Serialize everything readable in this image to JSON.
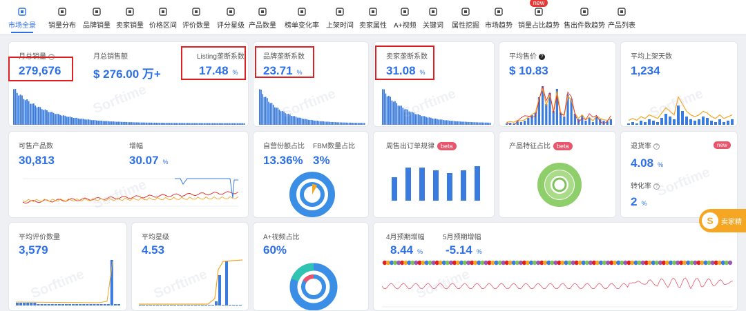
{
  "tabs": [
    {
      "label": "市场全景",
      "icon": "market-icon",
      "active": true
    },
    {
      "label": "销量分布",
      "icon": "bar-chart-icon"
    },
    {
      "label": "品牌销量",
      "icon": "brand-shield-icon"
    },
    {
      "label": "卖家销量",
      "icon": "seller-icon"
    },
    {
      "label": "价格区间",
      "icon": "price-icon"
    },
    {
      "label": "评价数量",
      "icon": "review-icon"
    },
    {
      "label": "评分星级",
      "icon": "star-icon"
    },
    {
      "label": "产品数量",
      "icon": "line-chart-icon"
    },
    {
      "label": "榜单变化率",
      "icon": "gauge-icon"
    },
    {
      "label": "上架时间",
      "icon": "calendar-icon"
    },
    {
      "label": "卖家属性",
      "icon": "store-icon"
    },
    {
      "label": "A+视频",
      "icon": "pie-icon"
    },
    {
      "label": "关键词",
      "icon": "keyword-icon"
    },
    {
      "label": "属性挖掘",
      "icon": "puzzle-icon"
    },
    {
      "label": "市场趋势",
      "icon": "trend-icon"
    },
    {
      "label": "销量占比趋势",
      "icon": "folder-icon",
      "badge": "new"
    },
    {
      "label": "售出件数趋势",
      "icon": "basket-icon"
    },
    {
      "label": "产品列表",
      "icon": "list-icon"
    }
  ],
  "cards": {
    "monthly_sales": {
      "label": "月总销量",
      "value": "279,676"
    },
    "monthly_revenue": {
      "label": "月总销售额",
      "value": "$ 276.00 万+"
    },
    "listing_monopoly": {
      "label": "Listing垄断系数",
      "value": "17.48",
      "unit": "%"
    },
    "brand_monopoly": {
      "label": "品牌垄断系数",
      "value": "23.71",
      "unit": "%"
    },
    "seller_monopoly": {
      "label": "卖家垄断系数",
      "value": "31.08",
      "unit": "%"
    },
    "avg_price": {
      "label": "平均售价",
      "value": "$ 10.83"
    },
    "avg_days_listed": {
      "label": "平均上架天数",
      "value": "1,234"
    },
    "products_for_sale": {
      "label": "可售产品数",
      "value": "30,813"
    },
    "growth": {
      "label": "增幅",
      "value": "30.07",
      "unit": "%"
    },
    "self_ship": {
      "label": "自营份额占比",
      "value": "13.36%"
    },
    "fbm": {
      "label": "FBM数量占比",
      "value": "3%"
    },
    "weekly_orders": {
      "label": "周售出订单规律",
      "badge": "beta"
    },
    "feature_share": {
      "label": "产品特征占比",
      "badge": "beta"
    },
    "return_rate": {
      "label": "退货率",
      "value": "4.08",
      "unit": "%",
      "badge": "new"
    },
    "conversion": {
      "label": "转化率",
      "value": "2",
      "unit": "%"
    },
    "avg_reviews": {
      "label": "平均评价数量",
      "value": "3,579"
    },
    "avg_rating": {
      "label": "平均星级",
      "value": "4.53"
    },
    "aplus_video": {
      "label": "A+视频占比",
      "value": "60%"
    },
    "april_forecast": {
      "label": "4月预期增幅",
      "value": "8.44",
      "unit": "%"
    },
    "may_forecast": {
      "label": "5月预期增幅",
      "value": "-5.14",
      "unit": "%"
    }
  },
  "watermark": "Sorftime",
  "float_button": {
    "icon": "S",
    "label": "卖家精"
  },
  "colors": {
    "accent": "#2d6fe6",
    "orange": "#f5a623",
    "red": "#e02020",
    "green": "#7cc35a",
    "pink": "#e9546b"
  }
}
